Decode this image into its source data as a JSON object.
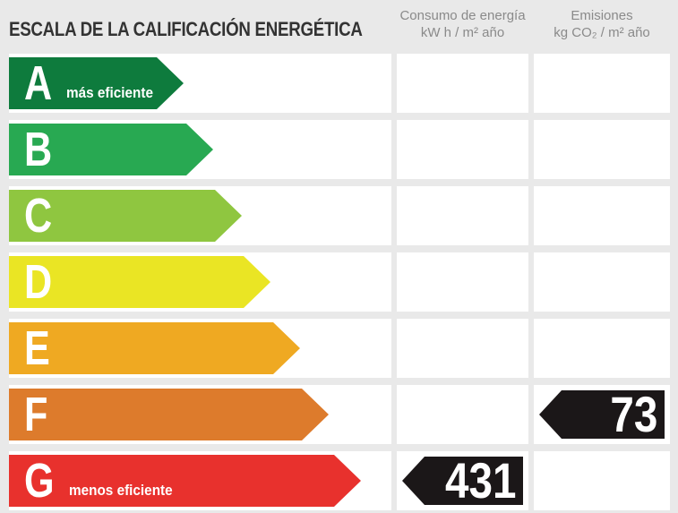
{
  "title": "ESCALA DE LA CALIFICACIÓN ENERGÉTICA",
  "header": {
    "consumo_line1": "Consumo de energía",
    "consumo_line2": "kW h / m² año",
    "emisiones_line1": "Emisiones",
    "emisiones_line2": "kg CO₂ / m² año"
  },
  "scale": {
    "rows": [
      {
        "letter": "A",
        "note": "más eficiente",
        "color": "#0e7b3d"
      },
      {
        "letter": "B",
        "note": "",
        "color": "#28a952"
      },
      {
        "letter": "C",
        "note": "",
        "color": "#8fc640"
      },
      {
        "letter": "D",
        "note": "",
        "color": "#eae524"
      },
      {
        "letter": "E",
        "note": "",
        "color": "#efa922"
      },
      {
        "letter": "F",
        "note": "",
        "color": "#dd7b2c"
      },
      {
        "letter": "G",
        "note": "menos eficiente",
        "color": "#e8312d"
      }
    ]
  },
  "values": {
    "consumo": {
      "rating": "G",
      "value": "431"
    },
    "emisiones": {
      "rating": "F",
      "value": "73"
    }
  },
  "colors": {
    "background": "#e9e9e9",
    "panel": "#ffffff",
    "value_tag": "#1b1718",
    "title_text": "#333333",
    "header_text": "#8a8a8a"
  },
  "chart_data": {
    "type": "bar",
    "title": "ESCALA DE LA CALIFICACIÓN ENERGÉTICA",
    "categories": [
      "A",
      "B",
      "C",
      "D",
      "E",
      "F",
      "G"
    ],
    "category_notes": {
      "A": "más eficiente",
      "G": "menos eficiente"
    },
    "bar_colors": [
      "#0e7b3d",
      "#28a952",
      "#8fc640",
      "#eae524",
      "#efa922",
      "#dd7b2c",
      "#e8312d"
    ],
    "bar_relative_lengths": [
      1,
      2,
      3,
      4,
      5,
      6,
      7
    ],
    "series": [
      {
        "name": "Consumo de energía kW h / m² año",
        "values": [
          null,
          null,
          null,
          null,
          null,
          null,
          431
        ]
      },
      {
        "name": "Emisiones kg CO₂ / m² año",
        "values": [
          null,
          null,
          null,
          null,
          null,
          73,
          null
        ]
      }
    ],
    "xlabel": "",
    "ylabel": "",
    "grid": false,
    "legend_position": "column-headers"
  }
}
